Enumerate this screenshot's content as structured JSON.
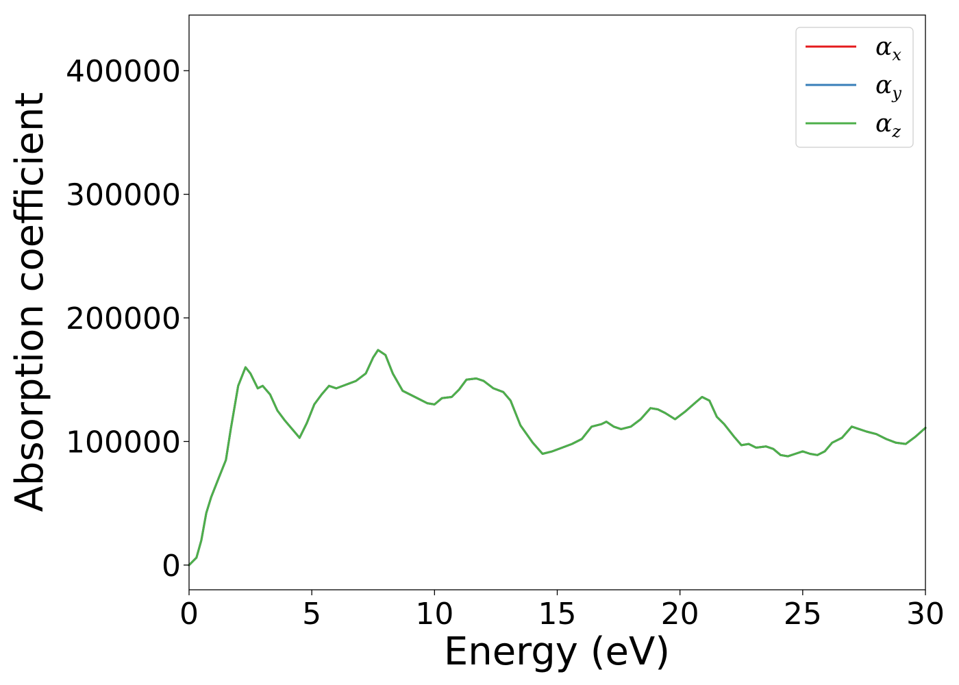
{
  "chart_data": {
    "type": "line",
    "xlabel": "Energy (eV)",
    "ylabel": "Absorption coefficient",
    "xlim": [
      0,
      30
    ],
    "ylim": [
      -20000,
      445000
    ],
    "xticks": [
      0,
      5,
      10,
      15,
      20,
      25,
      30
    ],
    "yticks": [
      0,
      100000,
      200000,
      300000,
      400000
    ],
    "grid": false,
    "legend_position": "top-right",
    "series": [
      {
        "name": "αx",
        "base": "α",
        "sub": "x",
        "color": "#e41a1c"
      },
      {
        "name": "αy",
        "base": "α",
        "sub": "y",
        "color": "#377eb8"
      },
      {
        "name": "αz",
        "base": "α",
        "sub": "z",
        "color": "#4daf4a"
      }
    ],
    "x": [
      0,
      0.3,
      0.5,
      0.7,
      0.9,
      1.2,
      1.5,
      1.7,
      2.0,
      2.3,
      2.5,
      2.8,
      3.0,
      3.3,
      3.6,
      3.9,
      4.2,
      4.5,
      4.8,
      5.1,
      5.4,
      5.7,
      6.0,
      6.4,
      6.8,
      7.2,
      7.5,
      7.7,
      8.0,
      8.3,
      8.7,
      9.2,
      9.7,
      10.0,
      10.3,
      10.7,
      11.0,
      11.3,
      11.7,
      12.0,
      12.4,
      12.8,
      13.1,
      13.5,
      14.0,
      14.4,
      14.8,
      15.2,
      15.6,
      16.0,
      16.4,
      16.8,
      17.0,
      17.3,
      17.6,
      18.0,
      18.4,
      18.8,
      19.1,
      19.4,
      19.8,
      20.2,
      20.6,
      20.9,
      21.2,
      21.5,
      21.8,
      22.2,
      22.5,
      22.8,
      23.1,
      23.5,
      23.8,
      24.1,
      24.4,
      24.7,
      25.0,
      25.3,
      25.6,
      25.9,
      26.2,
      26.6,
      27.0,
      27.3,
      27.6,
      28.0,
      28.4,
      28.8,
      29.2,
      29.6,
      30.0
    ],
    "values": [
      0,
      6000,
      20000,
      42000,
      55000,
      70000,
      85000,
      110000,
      145000,
      160000,
      155000,
      143000,
      145000,
      138000,
      125000,
      117000,
      110000,
      103000,
      115000,
      130000,
      138000,
      145000,
      143000,
      146000,
      149000,
      155000,
      168000,
      174000,
      170000,
      155000,
      141000,
      136000,
      131000,
      130000,
      135000,
      136000,
      142000,
      150000,
      151000,
      149000,
      143000,
      140000,
      133000,
      113000,
      99000,
      90000,
      92000,
      95000,
      98000,
      102000,
      112000,
      114000,
      116000,
      112000,
      110000,
      112000,
      118000,
      127000,
      126000,
      123000,
      118000,
      124000,
      131000,
      136000,
      133000,
      120000,
      114000,
      104000,
      97000,
      98000,
      95000,
      96000,
      94000,
      89000,
      88000,
      90000,
      92000,
      90000,
      89000,
      92000,
      99000,
      103000,
      112000,
      110000,
      108000,
      106000,
      102000,
      99000,
      98000,
      104000,
      111000
    ]
  }
}
